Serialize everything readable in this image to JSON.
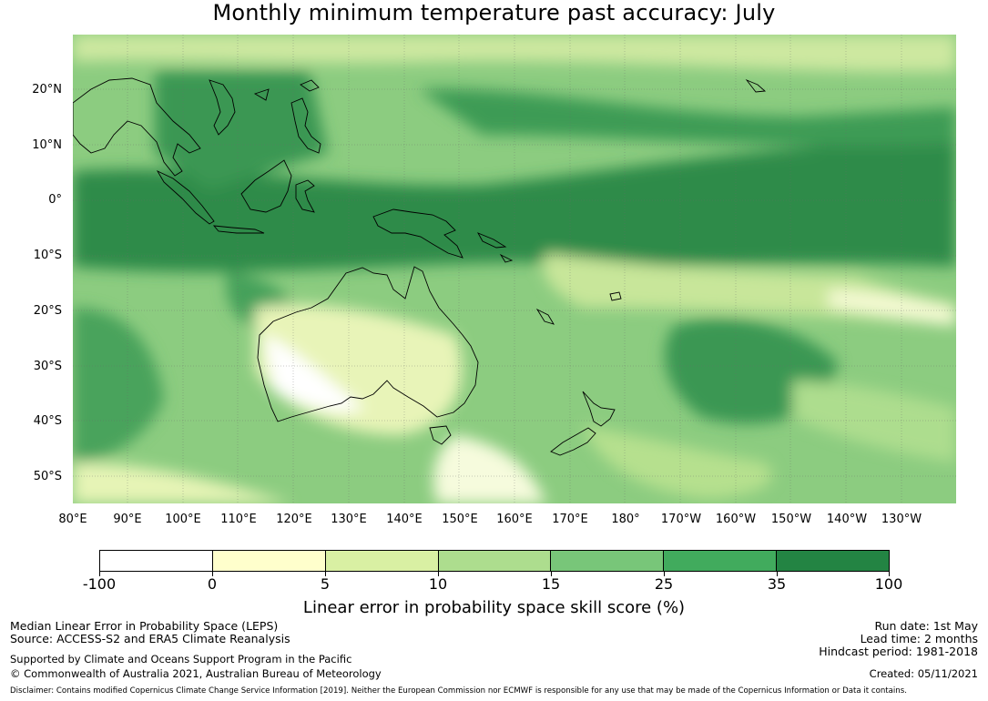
{
  "title": "Monthly minimum temperature past accuracy: July",
  "map": {
    "latitude_labels": [
      "20°N",
      "10°N",
      "0°",
      "10°S",
      "20°S",
      "30°S",
      "40°S",
      "50°S"
    ],
    "longitude_labels": [
      "80°E",
      "90°E",
      "100°E",
      "110°E",
      "120°E",
      "130°E",
      "140°E",
      "150°E",
      "160°E",
      "170°E",
      "180°",
      "170°W",
      "160°W",
      "150°W",
      "140°W",
      "130°W"
    ],
    "ocean_gridlines": true
  },
  "colorbar": {
    "tick_labels": [
      "-100",
      "0",
      "5",
      "10",
      "15",
      "25",
      "35",
      "100"
    ],
    "colors": [
      "#ffffff",
      "#ffffcc",
      "#d9f0a3",
      "#addd8e",
      "#78c679",
      "#41ab5d",
      "#238443"
    ],
    "title": "Linear error in probability space skill score (%)"
  },
  "footer": {
    "method": "Median Linear Error in Probability Space (LEPS)",
    "source": "Source: ACCESS-S2 and ERA5 Climate Reanalysis",
    "support": "Supported by Climate and Oceans Support Program in the Pacific",
    "copyright": "© Commonwealth of Australia 2021, Australian Bureau of Meteorology",
    "run_date": "Run date: 1st May",
    "lead_time": "Lead time: 2 months",
    "hindcast": "Hindcast period: 1981-2018",
    "created": "Created: 05/11/2021",
    "disclaimer": "Disclaimer: Contains modified Copernicus Climate Change Service Information [2019]. Neither the European Commission nor ECMWF is responsible for any use that may be made of the Copernicus Information or Data it contains."
  }
}
